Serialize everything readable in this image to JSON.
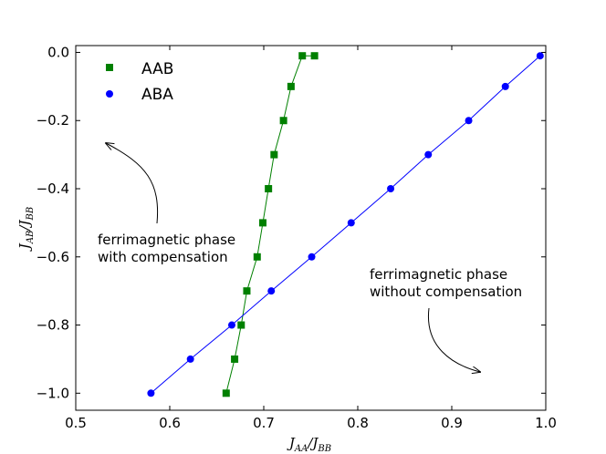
{
  "chart_data": {
    "type": "line",
    "title": "",
    "xlabel": "J_AA/J_BB",
    "ylabel": "J_AB/J_BB",
    "xlim": [
      0.5,
      1.0
    ],
    "ylim": [
      -1.05,
      0.02
    ],
    "xticks": [
      0.5,
      0.6,
      0.7,
      0.8,
      0.9,
      1.0
    ],
    "xtick_labels": [
      "0.5",
      "0.6",
      "0.7",
      "0.8",
      "0.9",
      "1.0"
    ],
    "yticks": [
      0.0,
      -0.2,
      -0.4,
      -0.6,
      -0.8,
      -1.0
    ],
    "ytick_labels": [
      "0.0",
      "−0.2",
      "−0.4",
      "−0.6",
      "−0.8",
      "−1.0"
    ],
    "grid": false,
    "legend_position": "top-left",
    "series": [
      {
        "name": "AAB",
        "color": "#008000",
        "marker": "square",
        "x": [
          0.66,
          0.669,
          0.676,
          0.682,
          0.693,
          0.699,
          0.705,
          0.711,
          0.721,
          0.729,
          0.741,
          0.754
        ],
        "y": [
          -1.0,
          -0.9,
          -0.8,
          -0.7,
          -0.6,
          -0.5,
          -0.4,
          -0.3,
          -0.2,
          -0.1,
          -0.01,
          -0.01
        ]
      },
      {
        "name": "ABA",
        "color": "#0000ff",
        "marker": "circle",
        "x": [
          0.58,
          0.622,
          0.666,
          0.708,
          0.751,
          0.793,
          0.835,
          0.875,
          0.918,
          0.957,
          0.994
        ],
        "y": [
          -1.0,
          -0.9,
          -0.8,
          -0.7,
          -0.6,
          -0.5,
          -0.4,
          -0.3,
          -0.2,
          -0.1,
          -0.01
        ]
      }
    ],
    "annotations": [
      {
        "line1": "ferrimagnetic phase",
        "line2": "with compensation"
      },
      {
        "line1": "ferrimagnetic phase",
        "line2": "without compensation"
      }
    ]
  }
}
